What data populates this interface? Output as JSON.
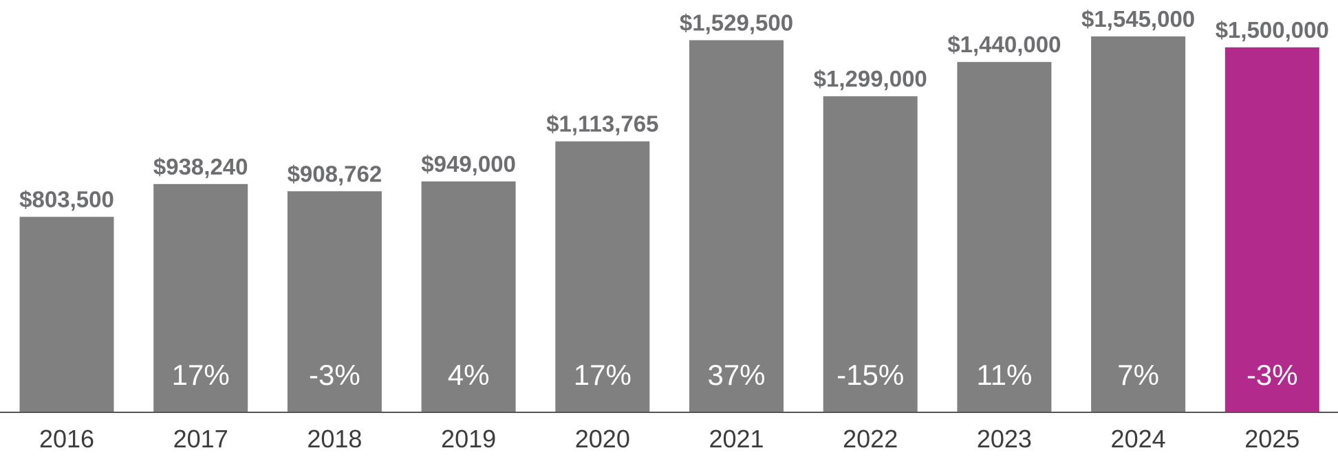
{
  "chart_data": {
    "type": "bar",
    "title": "",
    "xlabel": "",
    "ylabel": "",
    "ylim": [
      0,
      1545000
    ],
    "grid": false,
    "categories": [
      "2016",
      "2017",
      "2018",
      "2019",
      "2020",
      "2021",
      "2022",
      "2023",
      "2024",
      "2025"
    ],
    "values": [
      803500,
      938240,
      908762,
      949000,
      1113765,
      1529500,
      1299000,
      1440000,
      1545000,
      1500000
    ],
    "value_labels": [
      "$803,500",
      "$938,240",
      "$908,762",
      "$949,000",
      "$1,113,765",
      "$1,529,500",
      "$1,299,000",
      "$1,440,000",
      "$1,545,000",
      "$1,500,000"
    ],
    "change_labels": [
      "",
      "17%",
      "-3%",
      "4%",
      "17%",
      "37%",
      "-15%",
      "11%",
      "7%",
      "-3%"
    ],
    "colors": {
      "default_bar": "#808080",
      "highlight_bar": "#b12a8c",
      "value_text": "#6d6e71",
      "change_text": "#ffffff",
      "year_text": "#3c3c3c",
      "axis_line": "#555555"
    },
    "highlight_index": 9
  }
}
